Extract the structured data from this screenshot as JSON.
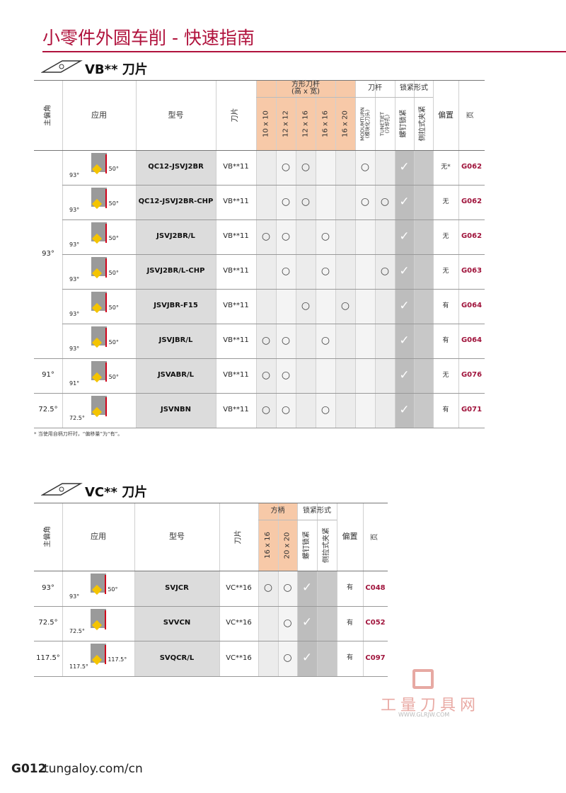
{
  "header": {
    "title": "小零件外圆车削 - 快速指南"
  },
  "sections": [
    {
      "title": "VB** 刀片",
      "column_headers": [
        "主偏角",
        "应用",
        "型号",
        "刀片",
        "10 x 10",
        "12 x 12",
        "12 x 16",
        "16 x 16",
        "16 x 20",
        "MODUMTURN\n(模块化刀头)",
        "TUNETJET\n(冷却孔)",
        "螺钉锁紧",
        "侧拉式夹紧",
        "偏置",
        "页"
      ],
      "groups": [
        "方形刀杆\n(高 x 宽)",
        "刀杆",
        "锁紧形式"
      ],
      "rows": [
        {
          "angle": "93°",
          "diagram": [
            "93°",
            "50°"
          ],
          "model": "QC12-JSVJ2BR",
          "insert": "VB**11",
          "marks": [
            null,
            "○",
            "○",
            null,
            null,
            "○",
            null,
            "✓",
            null
          ],
          "offset": "无*",
          "page": "G062"
        },
        {
          "angle": null,
          "diagram": [
            "93°",
            "50°"
          ],
          "model": "QC12-JSVJ2BR-CHP",
          "insert": "VB**11",
          "marks": [
            null,
            "○",
            "○",
            null,
            null,
            "○",
            "○",
            "✓",
            null
          ],
          "offset": "无",
          "page": "G062"
        },
        {
          "angle": null,
          "diagram": [
            "93°",
            "50°"
          ],
          "model": "JSVJ2BR/L",
          "insert": "VB**11",
          "marks": [
            "○",
            "○",
            null,
            "○",
            null,
            null,
            null,
            "✓",
            null
          ],
          "offset": "无",
          "page": "G062"
        },
        {
          "angle": null,
          "diagram": [
            "93°",
            "50°"
          ],
          "model": "JSVJ2BR/L-CHP",
          "insert": "VB**11",
          "marks": [
            null,
            "○",
            null,
            "○",
            null,
            null,
            "○",
            "✓",
            null
          ],
          "offset": "无",
          "page": "G063"
        },
        {
          "angle": null,
          "diagram": [
            "93°",
            "50°"
          ],
          "model": "JSVJBR-F15",
          "insert": "VB**11",
          "marks": [
            null,
            null,
            "○",
            null,
            "○",
            null,
            null,
            "✓",
            null
          ],
          "offset": "有",
          "page": "G064"
        },
        {
          "angle": null,
          "diagram": [
            "93°",
            "50°"
          ],
          "model": "JSVJBR/L",
          "insert": "VB**11",
          "marks": [
            "○",
            "○",
            null,
            "○",
            null,
            null,
            null,
            "✓",
            null
          ],
          "offset": "有",
          "page": "G064"
        },
        {
          "angle": "91°",
          "diagram": [
            "91°",
            "50°"
          ],
          "model": "JSVABR/L",
          "insert": "VB**11",
          "marks": [
            "○",
            "○",
            null,
            null,
            null,
            null,
            null,
            "✓",
            null
          ],
          "offset": "无",
          "page": "G076"
        },
        {
          "angle": "72.5°",
          "diagram": [
            "72.5°"
          ],
          "model": "JSVNBN",
          "insert": "VB**11",
          "marks": [
            "○",
            "○",
            null,
            "○",
            null,
            null,
            null,
            "✓",
            null
          ],
          "offset": "有",
          "page": "G071"
        }
      ],
      "footnote": "* 当使用自柄刀杆时，“偏移量”为“有”。"
    },
    {
      "title": "VC** 刀片",
      "column_headers": [
        "主偏角",
        "应用",
        "型号",
        "刀片",
        "16 x 16",
        "20 x 20",
        "螺钉锁紧",
        "侧拉式夹紧",
        "偏置",
        "页"
      ],
      "groups": [
        "方柄",
        "锁紧形式"
      ],
      "rows": [
        {
          "angle": "93°",
          "diagram": [
            "93°",
            "50°"
          ],
          "model": "SVJCR",
          "insert": "VC**16",
          "marks": [
            "○",
            "○",
            "✓",
            null
          ],
          "offset": "有",
          "page": "C048"
        },
        {
          "angle": "72.5°",
          "diagram": [
            "72.5°"
          ],
          "model": "SVVCN",
          "insert": "VC**16",
          "marks": [
            null,
            "○",
            "✓",
            null
          ],
          "offset": "有",
          "page": "C052"
        },
        {
          "angle": "117.5°",
          "diagram": [
            "117.5°",
            "117.5°"
          ],
          "model": "SVQCR/L",
          "insert": "VC**16",
          "marks": [
            null,
            "○",
            "✓",
            null
          ],
          "offset": "有",
          "page": "C097"
        }
      ]
    }
  ],
  "watermark": {
    "name": "工量刀具网",
    "url": "WWW.GLRJW.COM"
  },
  "footer": {
    "page": "G012",
    "site": "tungaloy.com/cn"
  }
}
